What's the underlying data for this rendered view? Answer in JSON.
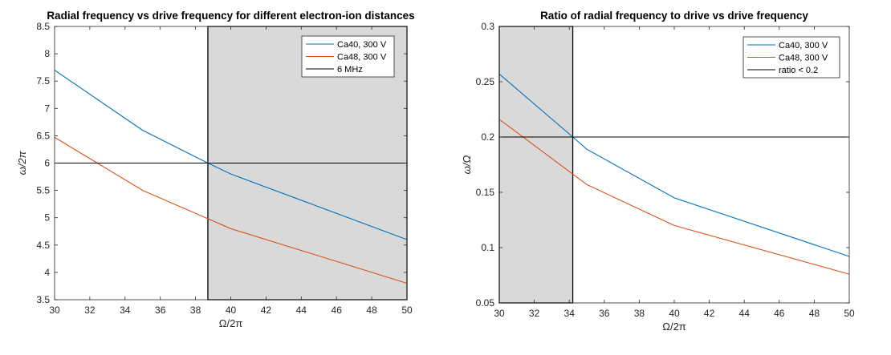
{
  "chart_data": [
    {
      "type": "line",
      "title": "Radial frequency vs drive frequency for different electron-ion distances",
      "xlabel": "Ω/2π",
      "ylabel": "ω/2π",
      "xlim": [
        30,
        50
      ],
      "ylim": [
        3.5,
        8.5
      ],
      "xticks": [
        "30",
        "32",
        "34",
        "36",
        "38",
        "40",
        "42",
        "44",
        "46",
        "48",
        "50"
      ],
      "yticks": [
        "3.5",
        "4",
        "4.5",
        "5",
        "5.5",
        "6",
        "6.5",
        "7",
        "7.5",
        "8",
        "8.5"
      ],
      "grid": false,
      "legend_position": "top-right",
      "shaded_region": {
        "x": [
          38.7,
          50
        ],
        "y": [
          3.5,
          8.5
        ],
        "color": "#d9d9d9"
      },
      "series": [
        {
          "name": "Ca40, 300 V",
          "color": "#0072bd",
          "x": [
            30,
            35,
            38.7,
            40,
            50
          ],
          "y": [
            7.7,
            6.6,
            6.0,
            5.8,
            4.6
          ]
        },
        {
          "name": "Ca48, 300 V",
          "color": "#d95319",
          "x": [
            30,
            35,
            40,
            50
          ],
          "y": [
            6.47,
            5.5,
            4.8,
            3.8
          ]
        },
        {
          "name": "6 MHz",
          "color": "#000000",
          "x": [
            30,
            50
          ],
          "y": [
            6,
            6
          ]
        }
      ]
    },
    {
      "type": "line",
      "title": "Ratio of radial frequency to drive vs drive frequency",
      "xlabel": "Ω/2π",
      "ylabel": "ω/Ω",
      "xlim": [
        30,
        50
      ],
      "ylim": [
        0.05,
        0.3
      ],
      "xticks": [
        "30",
        "32",
        "34",
        "36",
        "38",
        "40",
        "42",
        "44",
        "46",
        "48",
        "50"
      ],
      "yticks": [
        "0.05",
        "0.1",
        "0.15",
        "0.2",
        "0.25",
        "0.3"
      ],
      "grid": false,
      "legend_position": "top-right",
      "shaded_region": {
        "x": [
          30,
          34.2
        ],
        "y": [
          0.05,
          0.3
        ],
        "color": "#d9d9d9"
      },
      "series": [
        {
          "name": "Ca40, 300 V",
          "color": "#0072bd",
          "x": [
            30,
            34.2,
            35,
            40,
            50
          ],
          "y": [
            0.257,
            0.2,
            0.189,
            0.145,
            0.092
          ]
        },
        {
          "name": "Ca48, 300 V",
          "color": "#d95319",
          "x": [
            30,
            35,
            40,
            50
          ],
          "y": [
            0.216,
            0.157,
            0.12,
            0.076
          ]
        },
        {
          "name": "ratio < 0.2",
          "color": "#000000",
          "x": [
            30,
            50
          ],
          "y": [
            0.2,
            0.2
          ]
        }
      ]
    }
  ]
}
